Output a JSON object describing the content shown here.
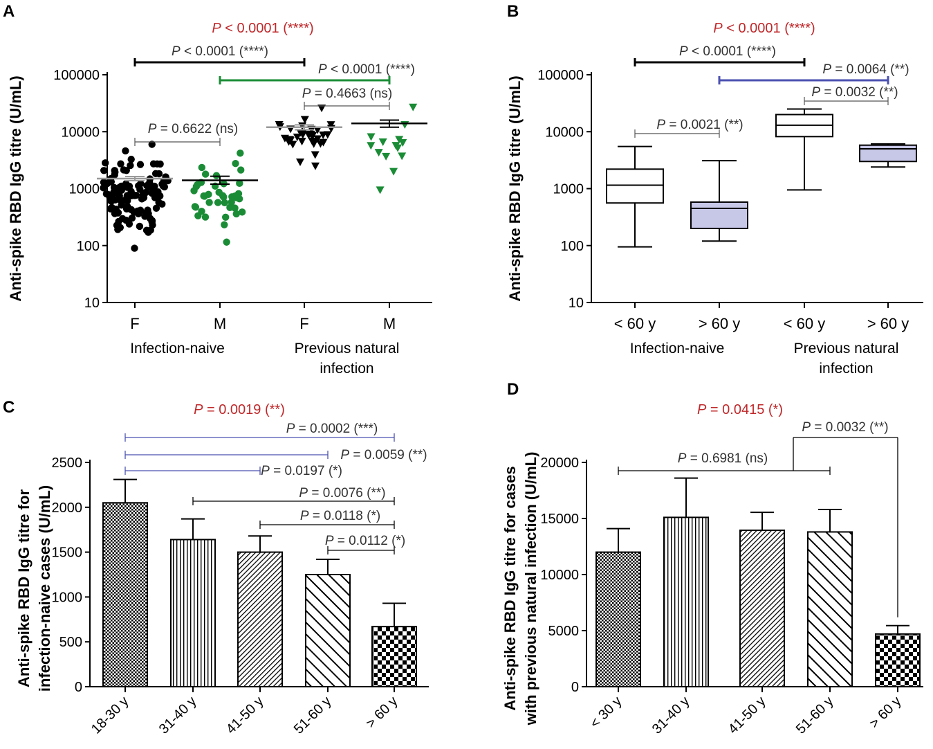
{
  "colors": {
    "black": "#000000",
    "green": "#1a8c36",
    "blue": "#4a50b0",
    "red": "#c0282a",
    "box_fill": "#c7c7e8",
    "gray_line": "#555555"
  },
  "chart_data": [
    {
      "panel": "A",
      "type": "scatter",
      "scale": "log",
      "ylabel": "Anti-spike RBD IgG titre (U/mL)",
      "ylim": [
        10,
        100000
      ],
      "yticks": [
        "10",
        "100",
        "1000",
        "10000",
        "100000"
      ],
      "categories": [
        "F",
        "M",
        "F",
        "M"
      ],
      "groups": [
        "Infection-naive",
        "Previous natural infection"
      ],
      "series": [
        {
          "name": "Infection-naive F",
          "color": "black",
          "marker": "circle",
          "mean": 1500,
          "sem_low": 1380,
          "sem_high": 1630,
          "min": 90,
          "max": 6000,
          "n": 120
        },
        {
          "name": "Infection-naive M",
          "color": "green",
          "marker": "circle",
          "mean": 1400,
          "sem_low": 1200,
          "sem_high": 1650,
          "min": 115,
          "max": 4200,
          "n": 40
        },
        {
          "name": "Previous natural infection F",
          "color": "black",
          "marker": "triangle",
          "mean": 12000,
          "sem_low": 10800,
          "sem_high": 13200,
          "min": 2500,
          "max": 26000,
          "n": 35
        },
        {
          "name": "Previous natural infection M",
          "color": "green",
          "marker": "triangle",
          "mean": 14000,
          "sem_low": 12000,
          "sem_high": 16000,
          "min": 950,
          "max": 27000,
          "n": 14
        }
      ],
      "comparisons": [
        {
          "label": "P < 0.0001 (****)",
          "from": 0,
          "to": 2,
          "color": "black"
        },
        {
          "label": "P < 0.0001 (****)",
          "from": 1,
          "to": 3,
          "color": "green"
        },
        {
          "label": "P = 0.4663 (ns)",
          "from": 2,
          "to": 3,
          "color": "gray"
        },
        {
          "label": "P = 0.6622 (ns)",
          "from": 0,
          "to": 1,
          "color": "gray"
        }
      ],
      "overall": "P < 0.0001 (****)"
    },
    {
      "panel": "B",
      "type": "box",
      "scale": "log",
      "ylabel": "Anti-spike RBD IgG titre (U/mL)",
      "ylim": [
        10,
        100000
      ],
      "yticks": [
        "10",
        "100",
        "1000",
        "10000",
        "100000"
      ],
      "categories": [
        "< 60 y",
        "> 60 y",
        "< 60 y",
        "> 60 y"
      ],
      "groups": [
        "Infection-naive",
        "Previous natural infection"
      ],
      "boxes": [
        {
          "name": "Infection-naive < 60 y",
          "min": 95,
          "q1": 560,
          "median": 1150,
          "q3": 2200,
          "max": 5500,
          "fill": "white"
        },
        {
          "name": "Infection-naive > 60 y",
          "min": 120,
          "q1": 200,
          "median": 450,
          "q3": 580,
          "max": 3100,
          "fill": "lavender"
        },
        {
          "name": "Previous natural infection < 60 y",
          "min": 950,
          "q1": 8200,
          "median": 13000,
          "q3": 20000,
          "max": 25000,
          "fill": "white"
        },
        {
          "name": "Previous natural infection > 60 y",
          "min": 2400,
          "q1": 3000,
          "median": 5000,
          "q3": 5800,
          "max": 6100,
          "fill": "lavender"
        }
      ],
      "comparisons": [
        {
          "label": "P < 0.0001 (****)",
          "from": 0,
          "to": 2,
          "color": "black"
        },
        {
          "label": "P = 0.0064 (**)",
          "from": 1,
          "to": 3,
          "color": "blue"
        },
        {
          "label": "P = 0.0032 (**)",
          "from": 2,
          "to": 3,
          "color": "gray"
        },
        {
          "label": "P = 0.0021 (**)",
          "from": 0,
          "to": 1,
          "color": "gray"
        }
      ],
      "overall": "P < 0.0001 (****)"
    },
    {
      "panel": "C",
      "type": "bar",
      "scale": "linear",
      "ylabel": "Anti-spike RBD IgG titre for infection-naive cases  (U/mL)",
      "ylabel_lines": [
        "Anti-spike RBD IgG titre for",
        "infection-naive cases  (U/mL)"
      ],
      "ylim": [
        0,
        2500
      ],
      "yticks": [
        "0",
        "500",
        "1000",
        "1500",
        "2000",
        "2500"
      ],
      "categories": [
        "18-30 y",
        "31-40 y",
        "41-50 y",
        "51-60 y",
        "> 60 y"
      ],
      "values": [
        2050,
        1640,
        1500,
        1250,
        670
      ],
      "errors": [
        260,
        230,
        180,
        170,
        260
      ],
      "patterns": [
        "dots",
        "vlines",
        "diag-fine",
        "diag-wide",
        "checker"
      ],
      "comparisons": [
        {
          "label": "P = 0.0002 (***)",
          "from": 0,
          "to": 4,
          "color": "blue"
        },
        {
          "label": "P = 0.0059 (**)",
          "from": 0,
          "to": 3,
          "color": "blue"
        },
        {
          "label": "P = 0.0197 (*)",
          "from": 0,
          "to": 2,
          "color": "blue"
        },
        {
          "label": "P = 0.0076 (**)",
          "from": 1,
          "to": 4,
          "color": "black"
        },
        {
          "label": "P = 0.0118 (*)",
          "from": 2,
          "to": 4,
          "color": "black"
        },
        {
          "label": "P = 0.0112 (*)",
          "from": 3,
          "to": 4,
          "color": "black"
        }
      ],
      "overall": "P = 0.0019 (**)"
    },
    {
      "panel": "D",
      "type": "bar",
      "scale": "linear",
      "ylabel": "Anti-spike RBD IgG titre for cases with previous natural infection (U/mL)",
      "ylabel_lines": [
        "Anti-spike RBD IgG titre for cases",
        "with previous natural infection (U/mL)"
      ],
      "ylim": [
        0,
        20000
      ],
      "yticks": [
        "0",
        "5000",
        "10000",
        "15000",
        "20000"
      ],
      "categories": [
        "< 30 y",
        "31-40 y",
        "41-50 y",
        "51-60 y",
        "> 60 y"
      ],
      "values": [
        12000,
        15100,
        13950,
        13800,
        4700
      ],
      "errors": [
        2100,
        3500,
        1600,
        2000,
        750
      ],
      "patterns": [
        "dots",
        "vlines",
        "diag-fine",
        "diag-wide",
        "checker"
      ],
      "comparisons": [
        {
          "label": "P = 0.6981 (ns)",
          "from": 0,
          "to": 3,
          "color": "black"
        },
        {
          "label": "P = 0.0032 (**)",
          "from": 3,
          "to": 4,
          "color": "black"
        }
      ],
      "overall": "P = 0.0415 (*)"
    }
  ]
}
